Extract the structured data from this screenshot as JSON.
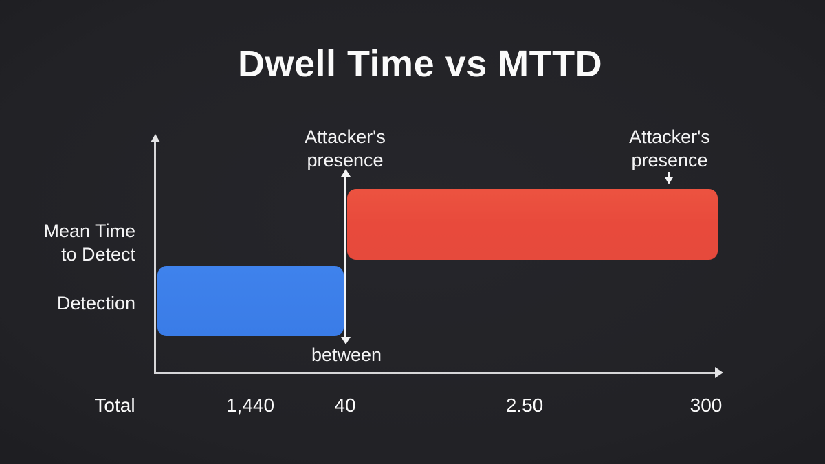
{
  "colors": {
    "background": "#222226",
    "axis": "#d6d6d8",
    "text": "#f4f4f5",
    "bar_detection_blue": "#3b7de9",
    "bar_mttd_red": "#e94b3d",
    "pointer_white": "#f4f4f5"
  },
  "chart_data": {
    "type": "bar",
    "orientation": "horizontal",
    "title": "Dwell Time vs MTTD",
    "categories": [
      "Mean Time to Detect",
      "Detection"
    ],
    "x_tick_labels": [
      "Total",
      "1,440",
      "40",
      "2.50",
      "300"
    ],
    "series": [
      {
        "name": "Mean Time to Detect",
        "color": "#e94b3d",
        "extent": {
          "from_tick": "40",
          "to_tick": "300"
        }
      },
      {
        "name": "Detection",
        "color": "#3b7de9",
        "extent": {
          "from_tick": "Total",
          "to_tick": "40"
        }
      }
    ],
    "annotations": [
      {
        "text": "Attacker's presence",
        "points_at": "top of boundary line between the two bars"
      },
      {
        "text": "Attacker's presence",
        "points_at": "right end of the red Mean Time to Detect bar"
      },
      {
        "text": "between",
        "points_at": "bottom of boundary line between the two bars"
      }
    ],
    "legend_position": "none",
    "grid": false,
    "axis_arrows": [
      "y-top",
      "x-right"
    ]
  }
}
